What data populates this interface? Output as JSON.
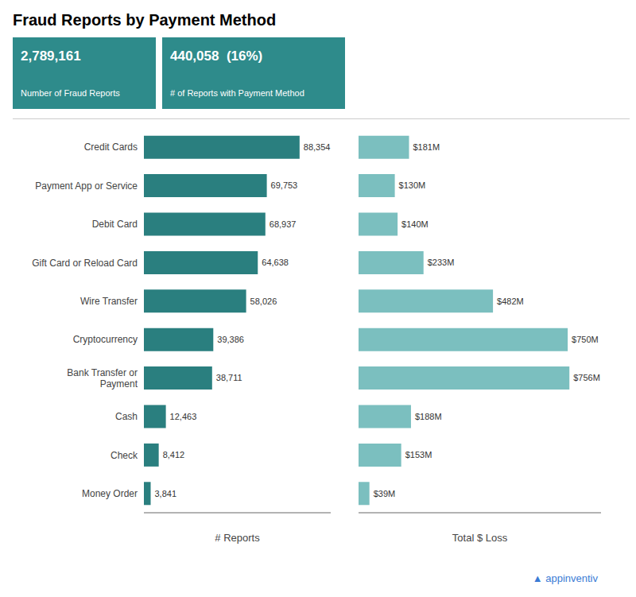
{
  "chart_data": [
    {
      "type": "bar",
      "orientation": "horizontal",
      "title": "Fraud Reports by Payment Method",
      "annotations": [
        {
          "text": "2,789,161",
          "subtext": "Number of Fraud Reports",
          "color": "#2e8b8b"
        },
        {
          "text": "440,058  (16%)",
          "subtext": "# of Reports with Payment Method",
          "color": "#2e8b8b"
        },
        {
          "text": "▲ appinventiv",
          "color": "#3a7bd5"
        }
      ],
      "categories": [
        "Credit Cards",
        "Payment App or Service",
        "Debit Card",
        "Gift Card or Reload Card",
        "Wire Transfer",
        "Cryptocurrency",
        "Bank Transfer or\nPayment",
        "Cash",
        "Check",
        "Money Order"
      ],
      "values": [
        88354,
        69753,
        68937,
        64638,
        58026,
        39386,
        38711,
        12463,
        8412,
        3841
      ],
      "value_labels": [
        "88,354",
        "69,753",
        "68,937",
        "64,638",
        "58,026",
        "39,386",
        "38,711",
        "12,463",
        "8,412",
        "3,841"
      ],
      "color": "#2a7f7f",
      "xlabel": "# Reports",
      "xlim": [
        0,
        106024.8
      ],
      "xticks": [],
      "data_labels": true,
      "tick_labels": "y",
      "grid": false
    },
    {
      "type": "bar",
      "orientation": "horizontal",
      "categories": [
        "Credit Cards",
        "Payment App or Service",
        "Debit Card",
        "Gift Card or Reload Card",
        "Wire Transfer",
        "Cryptocurrency",
        "Bank Transfer or\nPayment",
        "Cash",
        "Check",
        "Money Order"
      ],
      "values": [
        181,
        130,
        140,
        233,
        482,
        750,
        756,
        188,
        153,
        39
      ],
      "value_labels": [
        "$181M",
        "$130M",
        "$140M",
        "$233M",
        "$482M",
        "$750M",
        "$756M",
        "$188M",
        "$153M",
        "$39M"
      ],
      "color": "#7bbfbf",
      "xlabel": "Total $ Loss",
      "xlim": [
        0,
        869.4
      ],
      "xticks": [],
      "data_labels": true,
      "tick_labels": false,
      "grid": false
    }
  ]
}
